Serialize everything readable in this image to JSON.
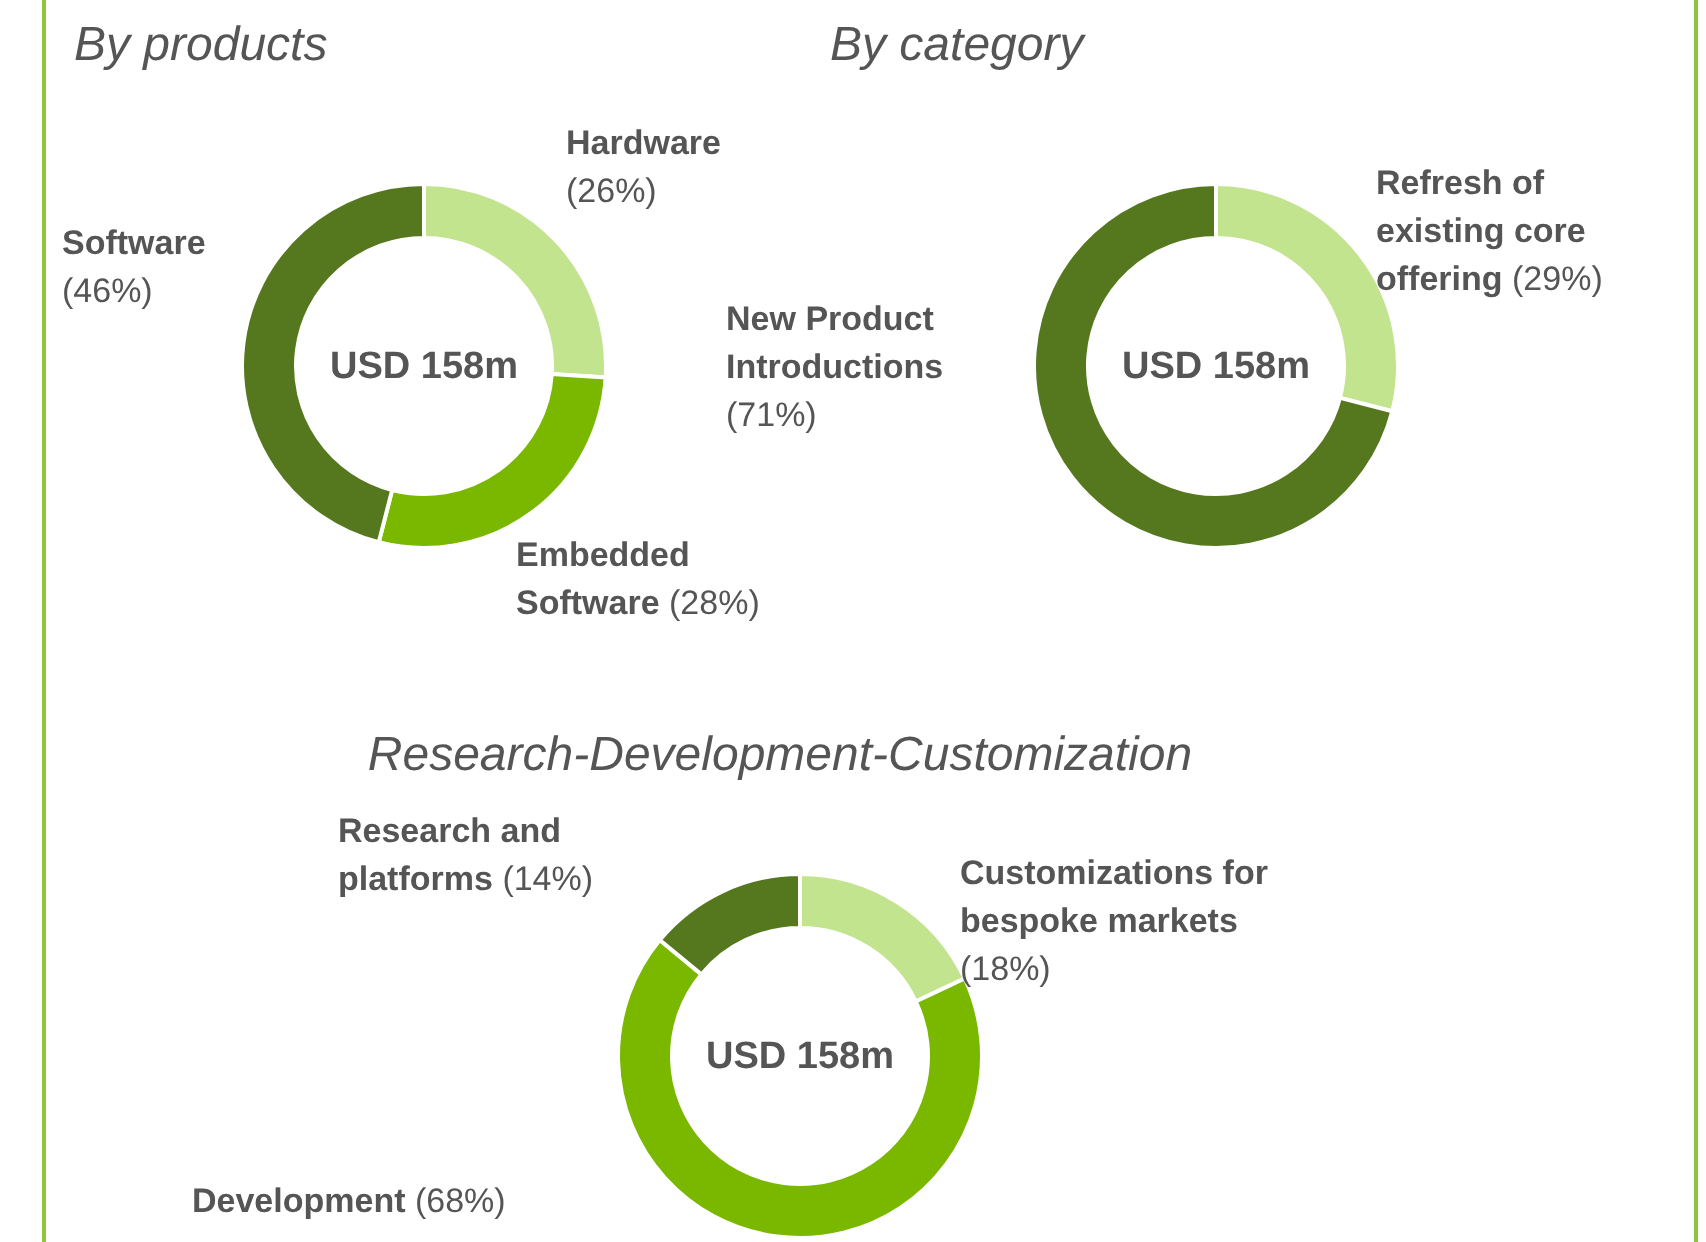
{
  "chart_data": [
    {
      "type": "donut",
      "title": "By products",
      "categories": [
        "Hardware",
        "Embedded Software",
        "Software"
      ],
      "values": [
        26,
        28,
        46
      ],
      "colors": [
        "#c3e48f",
        "#7ab800",
        "#55781e"
      ],
      "value_labels": [
        "(26%)",
        "(28%)",
        "(46%)"
      ],
      "annotations": [
        "USD 158m"
      ]
    },
    {
      "type": "donut",
      "title": "By category",
      "categories": [
        "Refresh of existing core offering",
        "New Product Introductions"
      ],
      "values": [
        29,
        71
      ],
      "colors": [
        "#c3e48f",
        "#55781e"
      ],
      "value_labels": [
        "(29%)",
        "(71%)"
      ],
      "annotations": [
        "USD 158m"
      ]
    },
    {
      "type": "donut",
      "title": "Research-Development-Customization",
      "categories": [
        "Customizations for bespoke markets",
        "Development",
        "Research and platforms"
      ],
      "values": [
        18,
        68,
        14
      ],
      "colors": [
        "#c3e48f",
        "#7ab800",
        "#55781e"
      ],
      "value_labels": [
        "(18%)",
        "(68%)",
        "(14%)"
      ],
      "annotations": [
        "USD 158m"
      ]
    }
  ]
}
